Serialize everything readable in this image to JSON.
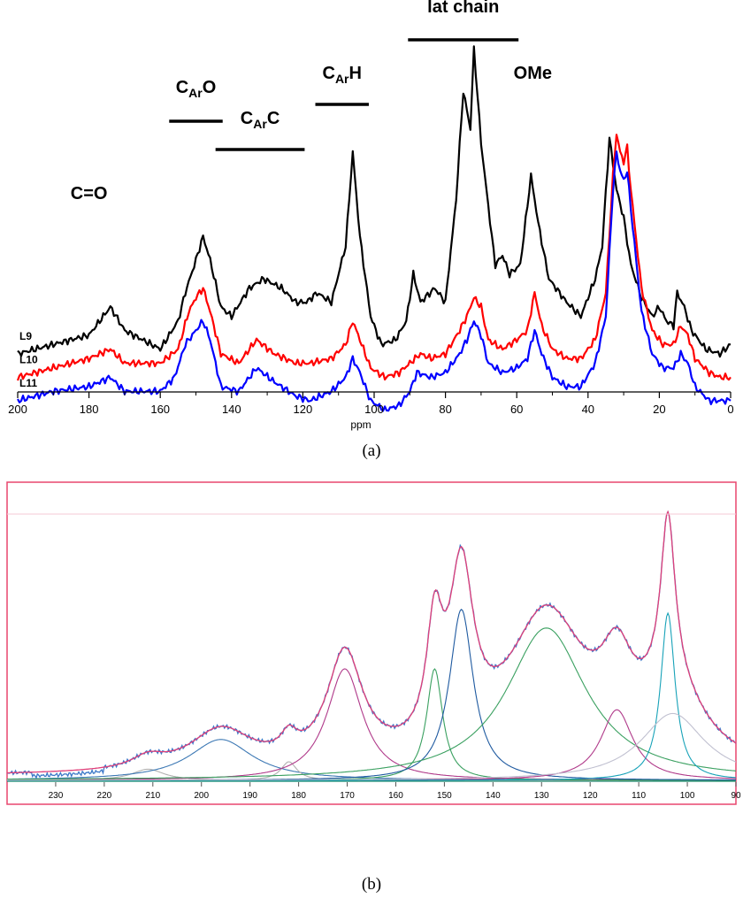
{
  "chart_data": [
    {
      "type": "line",
      "panel_label": "a",
      "xlabel": "ppm",
      "xlim": [
        200,
        0
      ],
      "x_ticks": [
        "200",
        "180",
        "160",
        "140",
        "120",
        "100",
        "80",
        "60",
        "40",
        "20",
        "0"
      ],
      "series": [
        {
          "name": "L9",
          "color": "#000000",
          "points": [
            [
              200,
              0.07
            ],
            [
              190,
              0.09
            ],
            [
              180,
              0.11
            ],
            [
              174,
              0.17
            ],
            [
              170,
              0.12
            ],
            [
              160,
              0.08
            ],
            [
              155,
              0.14
            ],
            [
              153,
              0.2
            ],
            [
              150,
              0.27
            ],
            [
              148,
              0.32
            ],
            [
              146,
              0.27
            ],
            [
              143,
              0.17
            ],
            [
              140,
              0.15
            ],
            [
              135,
              0.21
            ],
            [
              131,
              0.23
            ],
            [
              126,
              0.21
            ],
            [
              122,
              0.18
            ],
            [
              119,
              0.18
            ],
            [
              116,
              0.2
            ],
            [
              112,
              0.18
            ],
            [
              108,
              0.3
            ],
            [
              106,
              0.5
            ],
            [
              104,
              0.32
            ],
            [
              101,
              0.15
            ],
            [
              98,
              0.09
            ],
            [
              94,
              0.1
            ],
            [
              91,
              0.14
            ],
            [
              89,
              0.24
            ],
            [
              87,
              0.18
            ],
            [
              83,
              0.21
            ],
            [
              80,
              0.18
            ],
            [
              77,
              0.4
            ],
            [
              75,
              0.63
            ],
            [
              73,
              0.55
            ],
            [
              72,
              0.72
            ],
            [
              70,
              0.52
            ],
            [
              67,
              0.32
            ],
            [
              66,
              0.26
            ],
            [
              64,
              0.28
            ],
            [
              62,
              0.24
            ],
            [
              59,
              0.26
            ],
            [
              56,
              0.45
            ],
            [
              54,
              0.35
            ],
            [
              51,
              0.23
            ],
            [
              46,
              0.18
            ],
            [
              42,
              0.15
            ],
            [
              38,
              0.23
            ],
            [
              36,
              0.3
            ],
            [
              34,
              0.53
            ],
            [
              32,
              0.42
            ],
            [
              30,
              0.36
            ],
            [
              28,
              0.26
            ],
            [
              25,
              0.19
            ],
            [
              22,
              0.15
            ],
            [
              20,
              0.17
            ],
            [
              18,
              0.14
            ],
            [
              16,
              0.13
            ],
            [
              15,
              0.2
            ],
            [
              13,
              0.17
            ],
            [
              11,
              0.12
            ],
            [
              7,
              0.08
            ],
            [
              3,
              0.07
            ],
            [
              0,
              0.09
            ]
          ]
        },
        {
          "name": "L10",
          "color": "#ff0000",
          "points": [
            [
              200,
              0.02
            ],
            [
              190,
              0.04
            ],
            [
              180,
              0.06
            ],
            [
              174,
              0.08
            ],
            [
              170,
              0.05
            ],
            [
              160,
              0.05
            ],
            [
              155,
              0.08
            ],
            [
              152,
              0.16
            ],
            [
              150,
              0.19
            ],
            [
              148,
              0.21
            ],
            [
              146,
              0.16
            ],
            [
              143,
              0.07
            ],
            [
              138,
              0.05
            ],
            [
              133,
              0.1
            ],
            [
              128,
              0.07
            ],
            [
              122,
              0.05
            ],
            [
              118,
              0.05
            ],
            [
              112,
              0.06
            ],
            [
              108,
              0.09
            ],
            [
              106,
              0.14
            ],
            [
              104,
              0.1
            ],
            [
              101,
              0.04
            ],
            [
              97,
              0.02
            ],
            [
              93,
              0.03
            ],
            [
              90,
              0.05
            ],
            [
              87,
              0.07
            ],
            [
              84,
              0.06
            ],
            [
              80,
              0.07
            ],
            [
              76,
              0.12
            ],
            [
              74,
              0.15
            ],
            [
              72,
              0.19
            ],
            [
              70,
              0.17
            ],
            [
              68,
              0.1
            ],
            [
              64,
              0.08
            ],
            [
              60,
              0.1
            ],
            [
              57,
              0.12
            ],
            [
              55,
              0.2
            ],
            [
              53,
              0.13
            ],
            [
              50,
              0.08
            ],
            [
              46,
              0.06
            ],
            [
              42,
              0.06
            ],
            [
              38,
              0.1
            ],
            [
              35,
              0.2
            ],
            [
              33,
              0.45
            ],
            [
              32,
              0.54
            ],
            [
              31,
              0.5
            ],
            [
              30,
              0.48
            ],
            [
              29,
              0.51
            ],
            [
              28,
              0.42
            ],
            [
              25,
              0.21
            ],
            [
              22,
              0.12
            ],
            [
              19,
              0.09
            ],
            [
              16,
              0.09
            ],
            [
              14,
              0.13
            ],
            [
              12,
              0.11
            ],
            [
              10,
              0.06
            ],
            [
              6,
              0.03
            ],
            [
              3,
              0.02
            ],
            [
              0,
              0.02
            ]
          ]
        },
        {
          "name": "L11",
          "color": "#0000ff",
          "points": [
            [
              200,
              -0.03
            ],
            [
              190,
              -0.01
            ],
            [
              180,
              0.0
            ],
            [
              174,
              0.02
            ],
            [
              170,
              -0.01
            ],
            [
              160,
              -0.01
            ],
            [
              156,
              0.02
            ],
            [
              153,
              0.09
            ],
            [
              150,
              0.12
            ],
            [
              148,
              0.14
            ],
            [
              146,
              0.1
            ],
            [
              143,
              0.0
            ],
            [
              138,
              -0.01
            ],
            [
              133,
              0.04
            ],
            [
              128,
              0.01
            ],
            [
              122,
              -0.02
            ],
            [
              118,
              -0.03
            ],
            [
              112,
              -0.01
            ],
            [
              108,
              0.02
            ],
            [
              106,
              0.06
            ],
            [
              104,
              0.03
            ],
            [
              101,
              -0.03
            ],
            [
              97,
              -0.05
            ],
            [
              93,
              -0.04
            ],
            [
              90,
              -0.01
            ],
            [
              88,
              0.03
            ],
            [
              84,
              0.02
            ],
            [
              80,
              0.03
            ],
            [
              76,
              0.07
            ],
            [
              74,
              0.1
            ],
            [
              72,
              0.14
            ],
            [
              70,
              0.11
            ],
            [
              68,
              0.05
            ],
            [
              64,
              0.03
            ],
            [
              60,
              0.04
            ],
            [
              57,
              0.06
            ],
            [
              55,
              0.12
            ],
            [
              53,
              0.07
            ],
            [
              50,
              0.02
            ],
            [
              46,
              0.0
            ],
            [
              42,
              0.0
            ],
            [
              38,
              0.05
            ],
            [
              35,
              0.15
            ],
            [
              33,
              0.42
            ],
            [
              32,
              0.5
            ],
            [
              31,
              0.46
            ],
            [
              30,
              0.44
            ],
            [
              29,
              0.46
            ],
            [
              28,
              0.38
            ],
            [
              25,
              0.16
            ],
            [
              22,
              0.07
            ],
            [
              19,
              0.04
            ],
            [
              16,
              0.04
            ],
            [
              14,
              0.07
            ],
            [
              12,
              0.05
            ],
            [
              10,
              0.0
            ],
            [
              6,
              -0.03
            ],
            [
              3,
              -0.03
            ],
            [
              0,
              -0.03
            ]
          ]
        }
      ],
      "annotations": [
        {
          "text": "C=O",
          "ppm_from": 190,
          "ppm_to": 170,
          "bar": false
        },
        {
          "main": "C",
          "sub": "Ar",
          "tail": "O",
          "ppm_from": 157.5,
          "ppm_to": 142.5,
          "bar": true
        },
        {
          "main": "C",
          "sub": "Ar",
          "tail": "C",
          "ppm_from": 144.5,
          "ppm_to": 119.5,
          "bar": true
        },
        {
          "main": "C",
          "sub": "Ar",
          "tail": "H",
          "ppm_from": 116.5,
          "ppm_to": 101.5,
          "bar": true
        },
        {
          "text": "lat chain",
          "ppm_from": 90.5,
          "ppm_to": 59.5,
          "bar": true
        },
        {
          "text": "OMe",
          "ppm_from": 63,
          "ppm_to": 48,
          "bar": false
        }
      ]
    },
    {
      "type": "line",
      "panel_label": "b",
      "xlim": [
        240,
        90
      ],
      "x_ticks": [
        "230",
        "220",
        "210",
        "200",
        "190",
        "180",
        "170",
        "160",
        "150",
        "140",
        "130",
        "120",
        "110",
        "100",
        "90"
      ],
      "fit_components": [
        {
          "center": 211,
          "height": 0.03,
          "width": 4,
          "color": "#b0b0b0"
        },
        {
          "center": 196,
          "height": 0.11,
          "width": 8,
          "color": "#3c78b4"
        },
        {
          "center": 182,
          "height": 0.05,
          "width": 2,
          "color": "#b0b0b0"
        },
        {
          "center": 170.5,
          "height": 0.3,
          "width": 4.5,
          "color": "#b03a8a"
        },
        {
          "center": 152,
          "height": 0.3,
          "width": 2,
          "color": "#3aa060"
        },
        {
          "center": 146.5,
          "height": 0.46,
          "width": 3,
          "color": "#1f5aa0"
        },
        {
          "center": 129,
          "height": 0.41,
          "width": 10,
          "color": "#3aa060"
        },
        {
          "center": 114.5,
          "height": 0.19,
          "width": 4,
          "color": "#b03a8a"
        },
        {
          "center": 104,
          "height": 0.45,
          "width": 1.8,
          "color": "#17a2b8"
        },
        {
          "center": 103,
          "height": 0.18,
          "width": 8,
          "color": "#c0c0d0"
        }
      ],
      "series": [
        {
          "name": "",
          "color": "#3c78c8"
        },
        {
          "name": "",
          "color": "#e0407a"
        }
      ]
    }
  ],
  "captions": {
    "a": "(a)",
    "b": "(b)"
  }
}
